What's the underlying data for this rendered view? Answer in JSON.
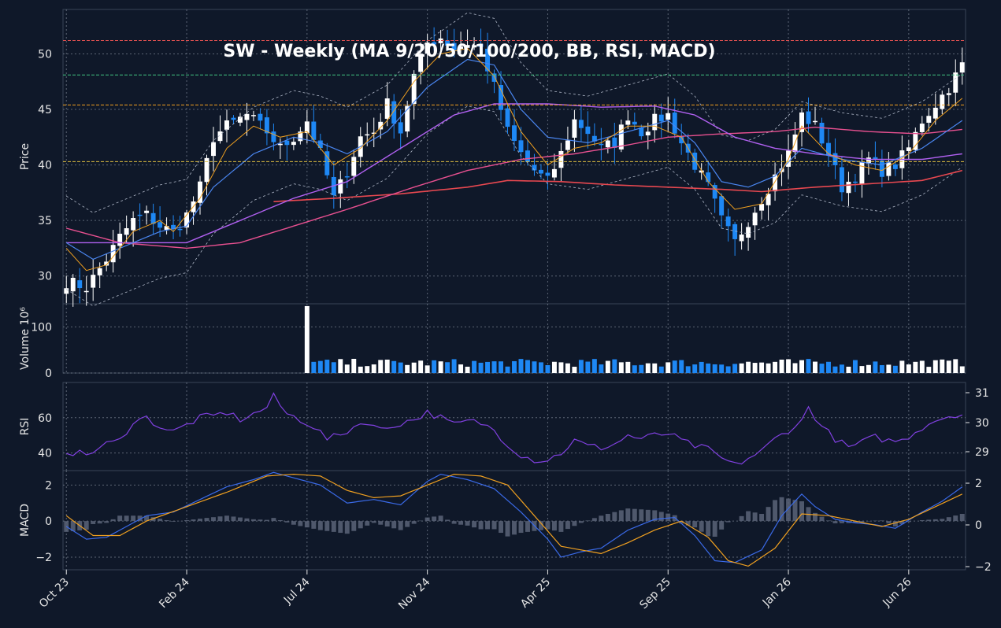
{
  "title": "SW  -  Weekly  (MA 9/20/50/100/200, BB, RSI, MACD)",
  "colors": {
    "background": "#0f1829",
    "up": "#ffffff",
    "down": "#1e88f5",
    "ma9": "#f0a020",
    "ma20": "#4a86f0",
    "ma50": "#b060f0",
    "ma100": "#e85090",
    "ma200": "#e84850",
    "bb": "#b0b8c8",
    "rsi": "#8040e0",
    "macd": "#3a6ae8",
    "signal": "#f0a020",
    "hist": "#5a6478",
    "hline_red": "#e05050",
    "hline_green": "#40c080",
    "hline_orange": "#f0a020",
    "hline_yellow": "#e0c040"
  },
  "chart_data": {
    "type": "candlestick",
    "title": "SW  -  Weekly  (MA 9/20/50/100/200, BB, RSI, MACD)",
    "x_tick_labels": [
      "Oct 23",
      "Feb 24",
      "Jul 24",
      "Nov 24",
      "Apr 25",
      "Sep 25",
      "Jan 26",
      "Jun 26"
    ],
    "x_tick_index": [
      0,
      18,
      36,
      54,
      72,
      90,
      108,
      126
    ],
    "bar_count": 135,
    "price_panel": {
      "ylabel": "Price",
      "ylim": [
        27.5,
        54.0
      ],
      "ticks": [
        30,
        35,
        40,
        45,
        50
      ],
      "anchors": [
        [
          0,
          29.5
        ],
        [
          3,
          29.0
        ],
        [
          6,
          31.5
        ],
        [
          8,
          33.5
        ],
        [
          10,
          35.0
        ],
        [
          12,
          35.5
        ],
        [
          14,
          34.5
        ],
        [
          16,
          34.0
        ],
        [
          18,
          35.5
        ],
        [
          20,
          38.0
        ],
        [
          22,
          42.5
        ],
        [
          24,
          43.5
        ],
        [
          27,
          44.5
        ],
        [
          30,
          43.0
        ],
        [
          32,
          41.5
        ],
        [
          34,
          42.5
        ],
        [
          36,
          44.0
        ],
        [
          38,
          41.0
        ],
        [
          40,
          37.0
        ],
        [
          42,
          39.5
        ],
        [
          44,
          42.5
        ],
        [
          46,
          43.0
        ],
        [
          48,
          45.5
        ],
        [
          50,
          43.0
        ],
        [
          52,
          48.0
        ],
        [
          54,
          51.0
        ],
        [
          56,
          51.5
        ],
        [
          58,
          50.5
        ],
        [
          60,
          51.0
        ],
        [
          62,
          50.5
        ],
        [
          64,
          47.0
        ],
        [
          66,
          43.0
        ],
        [
          68,
          41.0
        ],
        [
          70,
          39.5
        ],
        [
          72,
          38.5
        ],
        [
          74,
          41.0
        ],
        [
          76,
          44.0
        ],
        [
          78,
          43.0
        ],
        [
          80,
          41.5
        ],
        [
          82,
          42.0
        ],
        [
          84,
          44.5
        ],
        [
          86,
          43.0
        ],
        [
          88,
          44.0
        ],
        [
          90,
          44.5
        ],
        [
          92,
          42.0
        ],
        [
          94,
          40.0
        ],
        [
          96,
          38.0
        ],
        [
          98,
          35.0
        ],
        [
          100,
          33.0
        ],
        [
          102,
          35.0
        ],
        [
          104,
          37.0
        ],
        [
          106,
          39.0
        ],
        [
          108,
          41.0
        ],
        [
          110,
          44.5
        ],
        [
          112,
          43.5
        ],
        [
          114,
          41.0
        ],
        [
          116,
          38.0
        ],
        [
          118,
          39.0
        ],
        [
          120,
          40.5
        ],
        [
          122,
          39.5
        ],
        [
          124,
          40.0
        ],
        [
          126,
          41.5
        ],
        [
          128,
          44.0
        ],
        [
          130,
          45.5
        ],
        [
          132,
          47.0
        ],
        [
          134,
          49.0
        ]
      ],
      "ma9_anchors": [
        [
          0,
          32.5
        ],
        [
          3,
          30.5
        ],
        [
          6,
          31.0
        ],
        [
          10,
          34.0
        ],
        [
          14,
          35.0
        ],
        [
          16,
          34.0
        ],
        [
          20,
          37.0
        ],
        [
          24,
          41.5
        ],
        [
          28,
          43.5
        ],
        [
          32,
          42.5
        ],
        [
          36,
          43.0
        ],
        [
          40,
          40.0
        ],
        [
          44,
          41.5
        ],
        [
          48,
          44.0
        ],
        [
          52,
          47.5
        ],
        [
          56,
          50.0
        ],
        [
          60,
          50.5
        ],
        [
          64,
          48.0
        ],
        [
          68,
          43.0
        ],
        [
          72,
          40.0
        ],
        [
          76,
          41.5
        ],
        [
          80,
          42.0
        ],
        [
          84,
          43.5
        ],
        [
          88,
          43.5
        ],
        [
          92,
          42.5
        ],
        [
          96,
          38.5
        ],
        [
          100,
          36.0
        ],
        [
          104,
          36.5
        ],
        [
          108,
          40.5
        ],
        [
          110,
          43.5
        ],
        [
          114,
          41.0
        ],
        [
          118,
          40.0
        ],
        [
          122,
          39.5
        ],
        [
          126,
          41.0
        ],
        [
          130,
          44.0
        ],
        [
          134,
          46.0
        ]
      ],
      "ma20_anchors": [
        [
          0,
          33.0
        ],
        [
          4,
          31.5
        ],
        [
          8,
          32.5
        ],
        [
          14,
          34.0
        ],
        [
          18,
          34.5
        ],
        [
          22,
          38.0
        ],
        [
          28,
          41.0
        ],
        [
          34,
          42.5
        ],
        [
          38,
          42.0
        ],
        [
          42,
          41.0
        ],
        [
          48,
          43.0
        ],
        [
          54,
          47.0
        ],
        [
          60,
          49.5
        ],
        [
          64,
          49.0
        ],
        [
          68,
          45.0
        ],
        [
          72,
          42.5
        ],
        [
          78,
          42.0
        ],
        [
          84,
          43.0
        ],
        [
          90,
          44.0
        ],
        [
          94,
          42.0
        ],
        [
          98,
          38.5
        ],
        [
          102,
          38.0
        ],
        [
          106,
          39.0
        ],
        [
          110,
          41.5
        ],
        [
          116,
          40.5
        ],
        [
          122,
          40.0
        ],
        [
          128,
          41.5
        ],
        [
          134,
          44.0
        ]
      ],
      "ma50_anchors": [
        [
          0,
          33.0
        ],
        [
          10,
          33.0
        ],
        [
          18,
          33.0
        ],
        [
          26,
          35.0
        ],
        [
          34,
          37.0
        ],
        [
          42,
          38.5
        ],
        [
          50,
          41.5
        ],
        [
          58,
          44.5
        ],
        [
          64,
          45.5
        ],
        [
          72,
          45.5
        ],
        [
          80,
          45.2
        ],
        [
          88,
          45.3
        ],
        [
          94,
          44.5
        ],
        [
          100,
          42.5
        ],
        [
          106,
          41.5
        ],
        [
          112,
          41.0
        ],
        [
          120,
          40.5
        ],
        [
          128,
          40.5
        ],
        [
          134,
          41.0
        ]
      ],
      "ma100_anchors": [
        [
          0,
          34.3
        ],
        [
          8,
          33.0
        ],
        [
          18,
          32.5
        ],
        [
          26,
          33.0
        ],
        [
          34,
          34.5
        ],
        [
          42,
          36.0
        ],
        [
          52,
          38.0
        ],
        [
          60,
          39.5
        ],
        [
          68,
          40.5
        ],
        [
          76,
          41.0
        ],
        [
          84,
          41.8
        ],
        [
          90,
          42.5
        ],
        [
          98,
          42.8
        ],
        [
          106,
          43.0
        ],
        [
          112,
          43.4
        ],
        [
          120,
          43.0
        ],
        [
          128,
          42.8
        ],
        [
          134,
          43.2
        ]
      ],
      "ma200_anchors": [
        [
          31,
          36.7
        ],
        [
          40,
          37.0
        ],
        [
          50,
          37.4
        ],
        [
          60,
          38.0
        ],
        [
          66,
          38.6
        ],
        [
          74,
          38.5
        ],
        [
          82,
          38.2
        ],
        [
          90,
          38.0
        ],
        [
          98,
          37.8
        ],
        [
          104,
          37.6
        ],
        [
          112,
          38.0
        ],
        [
          120,
          38.3
        ],
        [
          128,
          38.6
        ],
        [
          134,
          39.5
        ]
      ],
      "hlines": [
        {
          "y": 51.2,
          "color": "#e05050"
        },
        {
          "y": 48.1,
          "color": "#40c080"
        },
        {
          "y": 45.4,
          "color": "#f0a020"
        },
        {
          "y": 40.3,
          "color": "#e0c040"
        }
      ]
    },
    "volume_panel": {
      "ylabel": "Volume  10⁶",
      "ylim": [
        0,
        150
      ],
      "ticks": [
        0,
        100
      ],
      "first_bar": 36,
      "spike": 145,
      "typical": 22
    },
    "rsi_panel": {
      "ylabel": "RSI",
      "ylim": [
        30,
        80
      ],
      "ticks": [
        40,
        60
      ],
      "right_ticks": [
        "29",
        "30",
        "31"
      ],
      "anchors": [
        [
          0,
          41
        ],
        [
          3,
          39
        ],
        [
          6,
          45
        ],
        [
          8,
          47
        ],
        [
          10,
          58
        ],
        [
          12,
          60
        ],
        [
          14,
          55
        ],
        [
          16,
          52
        ],
        [
          18,
          56
        ],
        [
          20,
          60
        ],
        [
          22,
          61
        ],
        [
          24,
          63
        ],
        [
          26,
          59
        ],
        [
          28,
          62
        ],
        [
          30,
          66
        ],
        [
          31,
          72
        ],
        [
          33,
          62
        ],
        [
          35,
          59
        ],
        [
          37,
          55
        ],
        [
          39,
          48
        ],
        [
          41,
          50
        ],
        [
          43,
          55
        ],
        [
          45,
          58
        ],
        [
          47,
          53
        ],
        [
          50,
          57
        ],
        [
          52,
          59
        ],
        [
          54,
          63
        ],
        [
          56,
          60
        ],
        [
          58,
          56
        ],
        [
          60,
          58
        ],
        [
          62,
          57
        ],
        [
          64,
          53
        ],
        [
          66,
          45
        ],
        [
          68,
          39
        ],
        [
          70,
          36
        ],
        [
          72,
          36
        ],
        [
          74,
          40
        ],
        [
          76,
          47
        ],
        [
          78,
          44
        ],
        [
          80,
          43
        ],
        [
          82,
          45
        ],
        [
          84,
          50
        ],
        [
          86,
          48
        ],
        [
          88,
          50
        ],
        [
          90,
          51
        ],
        [
          92,
          47
        ],
        [
          94,
          44
        ],
        [
          96,
          42
        ],
        [
          98,
          37
        ],
        [
          100,
          33
        ],
        [
          102,
          37
        ],
        [
          104,
          41
        ],
        [
          106,
          48
        ],
        [
          108,
          53
        ],
        [
          110,
          58
        ],
        [
          111,
          66
        ],
        [
          113,
          55
        ],
        [
          115,
          48
        ],
        [
          117,
          43
        ],
        [
          119,
          46
        ],
        [
          121,
          49
        ],
        [
          123,
          47
        ],
        [
          125,
          47
        ],
        [
          127,
          52
        ],
        [
          129,
          57
        ],
        [
          131,
          60
        ],
        [
          133,
          62
        ],
        [
          134,
          62
        ]
      ]
    },
    "macd_panel": {
      "ylabel": "MACD",
      "ylim": [
        -2.7,
        2.8
      ],
      "ticks": [
        -2,
        0,
        2
      ],
      "right_ticks": [
        "−2",
        "0",
        "2"
      ],
      "macd_anchors": [
        [
          0,
          -0.3
        ],
        [
          3,
          -1.0
        ],
        [
          6,
          -0.9
        ],
        [
          9,
          -0.3
        ],
        [
          12,
          0.3
        ],
        [
          16,
          0.5
        ],
        [
          20,
          1.2
        ],
        [
          24,
          1.9
        ],
        [
          28,
          2.3
        ],
        [
          31,
          2.7
        ],
        [
          34,
          2.4
        ],
        [
          38,
          2.0
        ],
        [
          42,
          1.0
        ],
        [
          46,
          1.2
        ],
        [
          50,
          0.9
        ],
        [
          54,
          2.2
        ],
        [
          56,
          2.6
        ],
        [
          60,
          2.3
        ],
        [
          64,
          1.8
        ],
        [
          68,
          0.5
        ],
        [
          72,
          -1.0
        ],
        [
          74,
          -2.0
        ],
        [
          77,
          -1.7
        ],
        [
          80,
          -1.5
        ],
        [
          84,
          -0.5
        ],
        [
          88,
          0.1
        ],
        [
          91,
          0.2
        ],
        [
          94,
          -0.8
        ],
        [
          97,
          -2.2
        ],
        [
          100,
          -2.3
        ],
        [
          104,
          -1.6
        ],
        [
          107,
          0.3
        ],
        [
          110,
          1.5
        ],
        [
          112,
          0.8
        ],
        [
          115,
          0.1
        ],
        [
          118,
          -0.1
        ],
        [
          121,
          -0.2
        ],
        [
          124,
          -0.4
        ],
        [
          128,
          0.5
        ],
        [
          131,
          1.1
        ],
        [
          134,
          1.9
        ]
      ],
      "signal_anchors": [
        [
          0,
          0.3
        ],
        [
          4,
          -0.8
        ],
        [
          8,
          -0.8
        ],
        [
          12,
          0.0
        ],
        [
          18,
          0.8
        ],
        [
          24,
          1.6
        ],
        [
          30,
          2.5
        ],
        [
          34,
          2.6
        ],
        [
          38,
          2.5
        ],
        [
          42,
          1.7
        ],
        [
          46,
          1.3
        ],
        [
          50,
          1.4
        ],
        [
          54,
          2.0
        ],
        [
          58,
          2.6
        ],
        [
          62,
          2.5
        ],
        [
          66,
          2.0
        ],
        [
          70,
          0.3
        ],
        [
          74,
          -1.4
        ],
        [
          80,
          -1.8
        ],
        [
          84,
          -1.2
        ],
        [
          88,
          -0.5
        ],
        [
          92,
          0.0
        ],
        [
          96,
          -0.9
        ],
        [
          99,
          -2.2
        ],
        [
          102,
          -2.5
        ],
        [
          106,
          -1.5
        ],
        [
          110,
          0.4
        ],
        [
          114,
          0.3
        ],
        [
          118,
          0.0
        ],
        [
          122,
          -0.3
        ],
        [
          126,
          0.1
        ],
        [
          130,
          0.8
        ],
        [
          134,
          1.5
        ]
      ]
    }
  }
}
